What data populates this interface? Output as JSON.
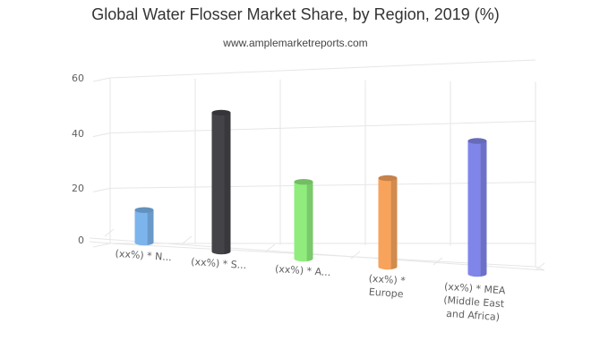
{
  "header": {
    "title": "Global Water Flosser Market Share, by Region, 2019 (%)",
    "subtitle": "www.amplemarketreports.com"
  },
  "chart_data": {
    "type": "bar",
    "title": "Global Water Flosser Market Share, by Region, 2019 (%)",
    "subtitle": "www.amplemarketreports.com",
    "categories": [
      [
        "(xx%) * N..."
      ],
      [
        "(xx%) * S..."
      ],
      [
        "(xx%) * A..."
      ],
      [
        "(xx%) *",
        "Europe"
      ],
      [
        "(xx%) * MEA",
        "(Middle East",
        "and Africa)"
      ]
    ],
    "values": [
      11,
      47,
      26,
      30,
      45
    ],
    "colors": [
      "#7cb5ec",
      "#434348",
      "#90ed7d",
      "#f7a35c",
      "#8085e9"
    ],
    "yticks": [
      0,
      20,
      40,
      60
    ],
    "ylim": [
      0,
      60
    ],
    "grid": true,
    "legend": "none",
    "style": "3d-cylinder"
  }
}
